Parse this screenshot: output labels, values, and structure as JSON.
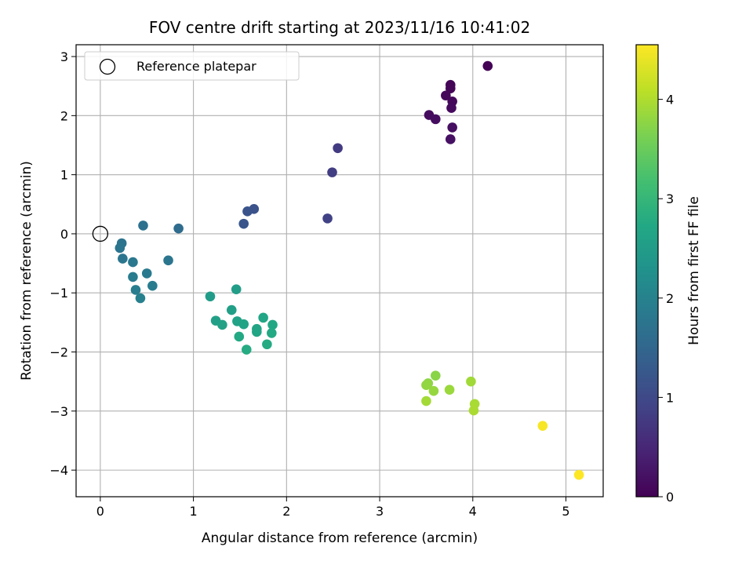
{
  "chart_data": {
    "type": "scatter",
    "title": "FOV centre drift starting at 2023/11/16 10:41:02",
    "xlabel": "Angular distance from reference (arcmin)",
    "ylabel": "Rotation from reference (arcmin)",
    "xlim": [
      -0.26,
      5.4
    ],
    "ylim": [
      -4.45,
      3.2
    ],
    "xticks": [
      0,
      1,
      2,
      3,
      4,
      5
    ],
    "yticks": [
      -4,
      -3,
      -2,
      -1,
      0,
      1,
      2,
      3
    ],
    "grid": true,
    "legend": {
      "placement": "top-left",
      "entries": [
        "Reference platepar"
      ]
    },
    "reference_point": {
      "name": "Reference platepar",
      "x": 0,
      "y": 0
    },
    "colorbar": {
      "label": "Hours from first FF file",
      "colormap": "viridis",
      "range": [
        0,
        4.55
      ],
      "ticks": [
        0,
        1,
        2,
        3,
        4
      ]
    },
    "points": [
      {
        "x": 4.16,
        "y": 2.84,
        "c": 0.02
      },
      {
        "x": 3.76,
        "y": 2.52,
        "c": 0.04
      },
      {
        "x": 3.76,
        "y": 2.46,
        "c": 0.06
      },
      {
        "x": 3.71,
        "y": 2.34,
        "c": 0.08
      },
      {
        "x": 3.78,
        "y": 2.24,
        "c": 0.1
      },
      {
        "x": 3.77,
        "y": 2.13,
        "c": 0.12
      },
      {
        "x": 3.53,
        "y": 2.01,
        "c": 0.14
      },
      {
        "x": 3.6,
        "y": 1.94,
        "c": 0.16
      },
      {
        "x": 3.78,
        "y": 1.8,
        "c": 0.18
      },
      {
        "x": 3.76,
        "y": 1.6,
        "c": 0.2
      },
      {
        "x": 2.55,
        "y": 1.45,
        "c": 0.78
      },
      {
        "x": 2.49,
        "y": 1.04,
        "c": 0.82
      },
      {
        "x": 2.44,
        "y": 0.26,
        "c": 0.88
      },
      {
        "x": 1.65,
        "y": 0.42,
        "c": 1.15
      },
      {
        "x": 1.58,
        "y": 0.38,
        "c": 1.18
      },
      {
        "x": 1.54,
        "y": 0.17,
        "c": 1.2
      },
      {
        "x": 0.84,
        "y": 0.09,
        "c": 1.6
      },
      {
        "x": 0.46,
        "y": 0.14,
        "c": 1.7
      },
      {
        "x": 0.23,
        "y": -0.16,
        "c": 1.74
      },
      {
        "x": 0.21,
        "y": -0.24,
        "c": 1.76
      },
      {
        "x": 0.24,
        "y": -0.42,
        "c": 1.79
      },
      {
        "x": 0.35,
        "y": -0.48,
        "c": 1.82
      },
      {
        "x": 0.73,
        "y": -0.45,
        "c": 1.78
      },
      {
        "x": 0.5,
        "y": -0.67,
        "c": 1.85
      },
      {
        "x": 0.35,
        "y": -0.73,
        "c": 1.88
      },
      {
        "x": 0.56,
        "y": -0.88,
        "c": 1.9
      },
      {
        "x": 0.38,
        "y": -0.95,
        "c": 1.93
      },
      {
        "x": 0.43,
        "y": -1.09,
        "c": 1.96
      },
      {
        "x": 1.18,
        "y": -1.06,
        "c": 2.5
      },
      {
        "x": 1.46,
        "y": -0.94,
        "c": 2.52
      },
      {
        "x": 1.41,
        "y": -1.29,
        "c": 2.55
      },
      {
        "x": 1.24,
        "y": -1.47,
        "c": 2.57
      },
      {
        "x": 1.31,
        "y": -1.54,
        "c": 2.6
      },
      {
        "x": 1.47,
        "y": -1.48,
        "c": 2.62
      },
      {
        "x": 1.54,
        "y": -1.53,
        "c": 2.64
      },
      {
        "x": 1.68,
        "y": -1.61,
        "c": 2.66
      },
      {
        "x": 1.68,
        "y": -1.66,
        "c": 2.68
      },
      {
        "x": 1.75,
        "y": -1.42,
        "c": 2.7
      },
      {
        "x": 1.85,
        "y": -1.54,
        "c": 2.72
      },
      {
        "x": 1.84,
        "y": -1.68,
        "c": 2.74
      },
      {
        "x": 1.49,
        "y": -1.74,
        "c": 2.75
      },
      {
        "x": 1.79,
        "y": -1.87,
        "c": 2.77
      },
      {
        "x": 1.57,
        "y": -1.96,
        "c": 2.78
      },
      {
        "x": 3.6,
        "y": -2.4,
        "c": 3.75
      },
      {
        "x": 3.52,
        "y": -2.53,
        "c": 3.78
      },
      {
        "x": 3.5,
        "y": -2.56,
        "c": 3.8
      },
      {
        "x": 3.58,
        "y": -2.66,
        "c": 3.83
      },
      {
        "x": 3.75,
        "y": -2.64,
        "c": 3.86
      },
      {
        "x": 3.98,
        "y": -2.5,
        "c": 3.9
      },
      {
        "x": 3.5,
        "y": -2.83,
        "c": 3.92
      },
      {
        "x": 4.02,
        "y": -2.88,
        "c": 3.95
      },
      {
        "x": 4.01,
        "y": -2.99,
        "c": 3.97
      },
      {
        "x": 4.75,
        "y": -3.25,
        "c": 4.5
      },
      {
        "x": 5.14,
        "y": -4.08,
        "c": 4.55
      }
    ]
  }
}
